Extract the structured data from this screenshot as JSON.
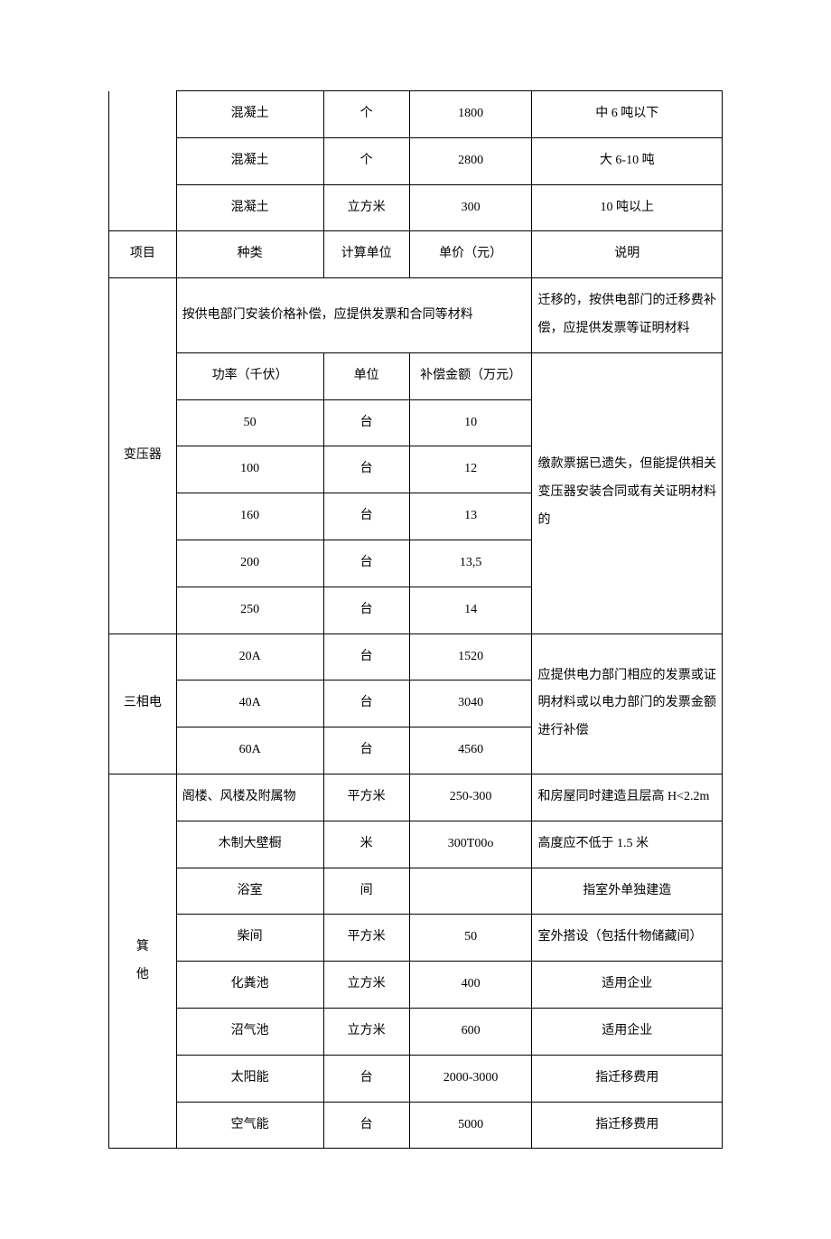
{
  "top_rows": [
    {
      "type": "混凝土",
      "unit": "个",
      "price": "1800",
      "note": "中 6 吨以下"
    },
    {
      "type": "混凝土",
      "unit": "个",
      "price": "2800",
      "note": "大 6-10 吨"
    },
    {
      "type": "混凝土",
      "unit": "立方米",
      "price": "300",
      "note": "10 吨以上"
    }
  ],
  "header": {
    "project": "项目",
    "type": "种类",
    "calc_unit": "计算单位",
    "unit_price": "单价（元）",
    "note": "说明"
  },
  "transformer": {
    "label": "变压器",
    "merged_text": "按供电部门安装价格补偿，应提供发票和合同等材料",
    "note1": "迁移的，按供电部门的迁移费补偿，应提供发票等证明材料",
    "subheader": {
      "power": "功率（千伏）",
      "unit": "单位",
      "amount": "补偿金额（万元）"
    },
    "rows": [
      {
        "power": "50",
        "unit": "台",
        "amount": "10"
      },
      {
        "power": "100",
        "unit": "台",
        "amount": "12"
      },
      {
        "power": "160",
        "unit": "台",
        "amount": "13"
      },
      {
        "power": "200",
        "unit": "台",
        "amount": "13,5"
      },
      {
        "power": "250",
        "unit": "台",
        "amount": "14"
      }
    ],
    "note2": "缴款票据已遗失，但能提供相关变压器安装合同或有关证明材料的"
  },
  "three_phase": {
    "label": "三相电",
    "rows": [
      {
        "spec": "20A",
        "unit": "台",
        "price": "1520"
      },
      {
        "spec": "40A",
        "unit": "台",
        "price": "3040"
      },
      {
        "spec": "60A",
        "unit": "台",
        "price": "4560"
      }
    ],
    "note": "应提供电力部门相应的发票或证明材料或以电力部门的发票金额进行补偿"
  },
  "other": {
    "label_line1": "箕",
    "label_line2": "他",
    "rows": [
      {
        "type": "阁楼、风楼及附属物",
        "unit": "平方米",
        "price": "250-300",
        "note": "和房屋同时建造且层高 H<2.2m"
      },
      {
        "type": "木制大壁橱",
        "unit": "米",
        "price": "300T00o",
        "note": "高度应不低于 1.5 米"
      },
      {
        "type": "浴室",
        "unit": "间",
        "price": "",
        "note": "指室外单独建造"
      },
      {
        "type": "柴间",
        "unit": "平方米",
        "price": "50",
        "note": "室外搭设（包括什物储藏间）"
      },
      {
        "type": "化粪池",
        "unit": "立方米",
        "price": "400",
        "note": "适用企业"
      },
      {
        "type": "沼气池",
        "unit": "立方米",
        "price": "600",
        "note": "适用企业"
      },
      {
        "type": "太阳能",
        "unit": "台",
        "price": "2000-3000",
        "note": "指迁移费用"
      },
      {
        "type": "空气能",
        "unit": "台",
        "price": "5000",
        "note": "指迁移费用"
      }
    ]
  }
}
